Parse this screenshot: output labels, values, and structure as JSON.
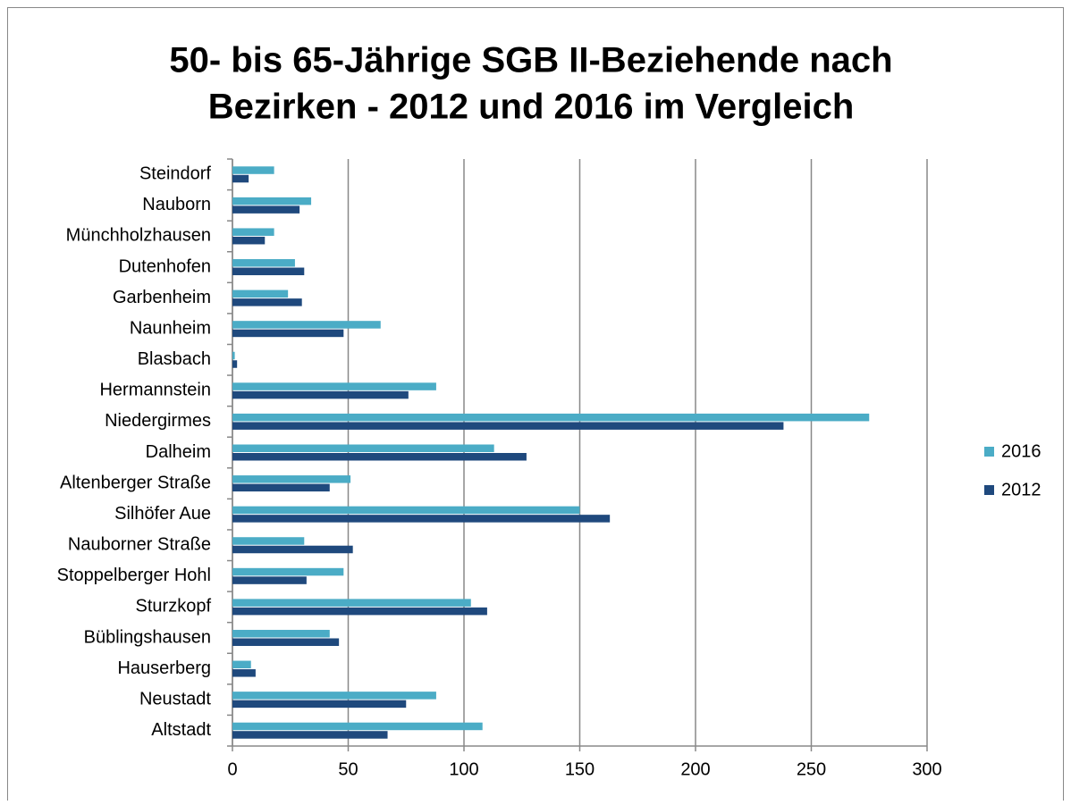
{
  "chart_data": {
    "type": "hbar",
    "title": [
      "50- bis 65-Jährige SGB II-Beziehende nach",
      "Bezirken - 2012 und 2016 im Vergleich"
    ],
    "categories": [
      "Steindorf",
      "Nauborn",
      "Münchholzhausen",
      "Dutenhofen",
      "Garbenheim",
      "Naunheim",
      "Blasbach",
      "Hermannstein",
      "Niedergirmes",
      "Dalheim",
      "Altenberger Straße",
      "Silhöfer Aue",
      "Nauborner Straße",
      "Stoppelberger Hohl",
      "Sturzkopf",
      "Büblingshausen",
      "Hauserberg",
      "Neustadt",
      "Altstadt"
    ],
    "series": [
      {
        "name": "2016",
        "color": "#4bacc6",
        "values": [
          18,
          34,
          18,
          27,
          24,
          64,
          1,
          88,
          275,
          113,
          51,
          150,
          31,
          48,
          103,
          42,
          8,
          88,
          108
        ]
      },
      {
        "name": "2012",
        "color": "#1f497d",
        "values": [
          7,
          29,
          14,
          31,
          30,
          48,
          2,
          76,
          238,
          127,
          42,
          163,
          52,
          32,
          110,
          46,
          10,
          75,
          67
        ]
      }
    ],
    "xlim": [
      0,
      300
    ],
    "xticks": [
      0,
      50,
      100,
      150,
      200,
      250,
      300
    ],
    "grid": true,
    "legend": "right"
  }
}
